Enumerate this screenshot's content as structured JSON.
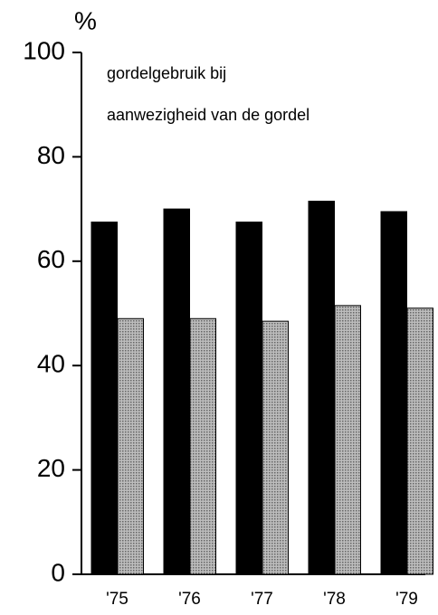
{
  "chart_data": {
    "type": "bar",
    "title": [
      "gordelgebruik bij",
      "aanwezigheid van de gordel"
    ],
    "y_label": "%",
    "categories": [
      "'75",
      "'76",
      "'77",
      "'78",
      "'79"
    ],
    "series": [
      {
        "color": "#000000",
        "values": [
          67.5,
          70,
          67.5,
          71.5,
          69.5
        ]
      },
      {
        "color": "#bdbdbd",
        "values": [
          49,
          49,
          48.5,
          51.5,
          51
        ]
      }
    ],
    "ylim": [
      0,
      100
    ],
    "yticks": [
      0,
      20,
      40,
      60,
      80,
      100
    ],
    "grid": false
  }
}
